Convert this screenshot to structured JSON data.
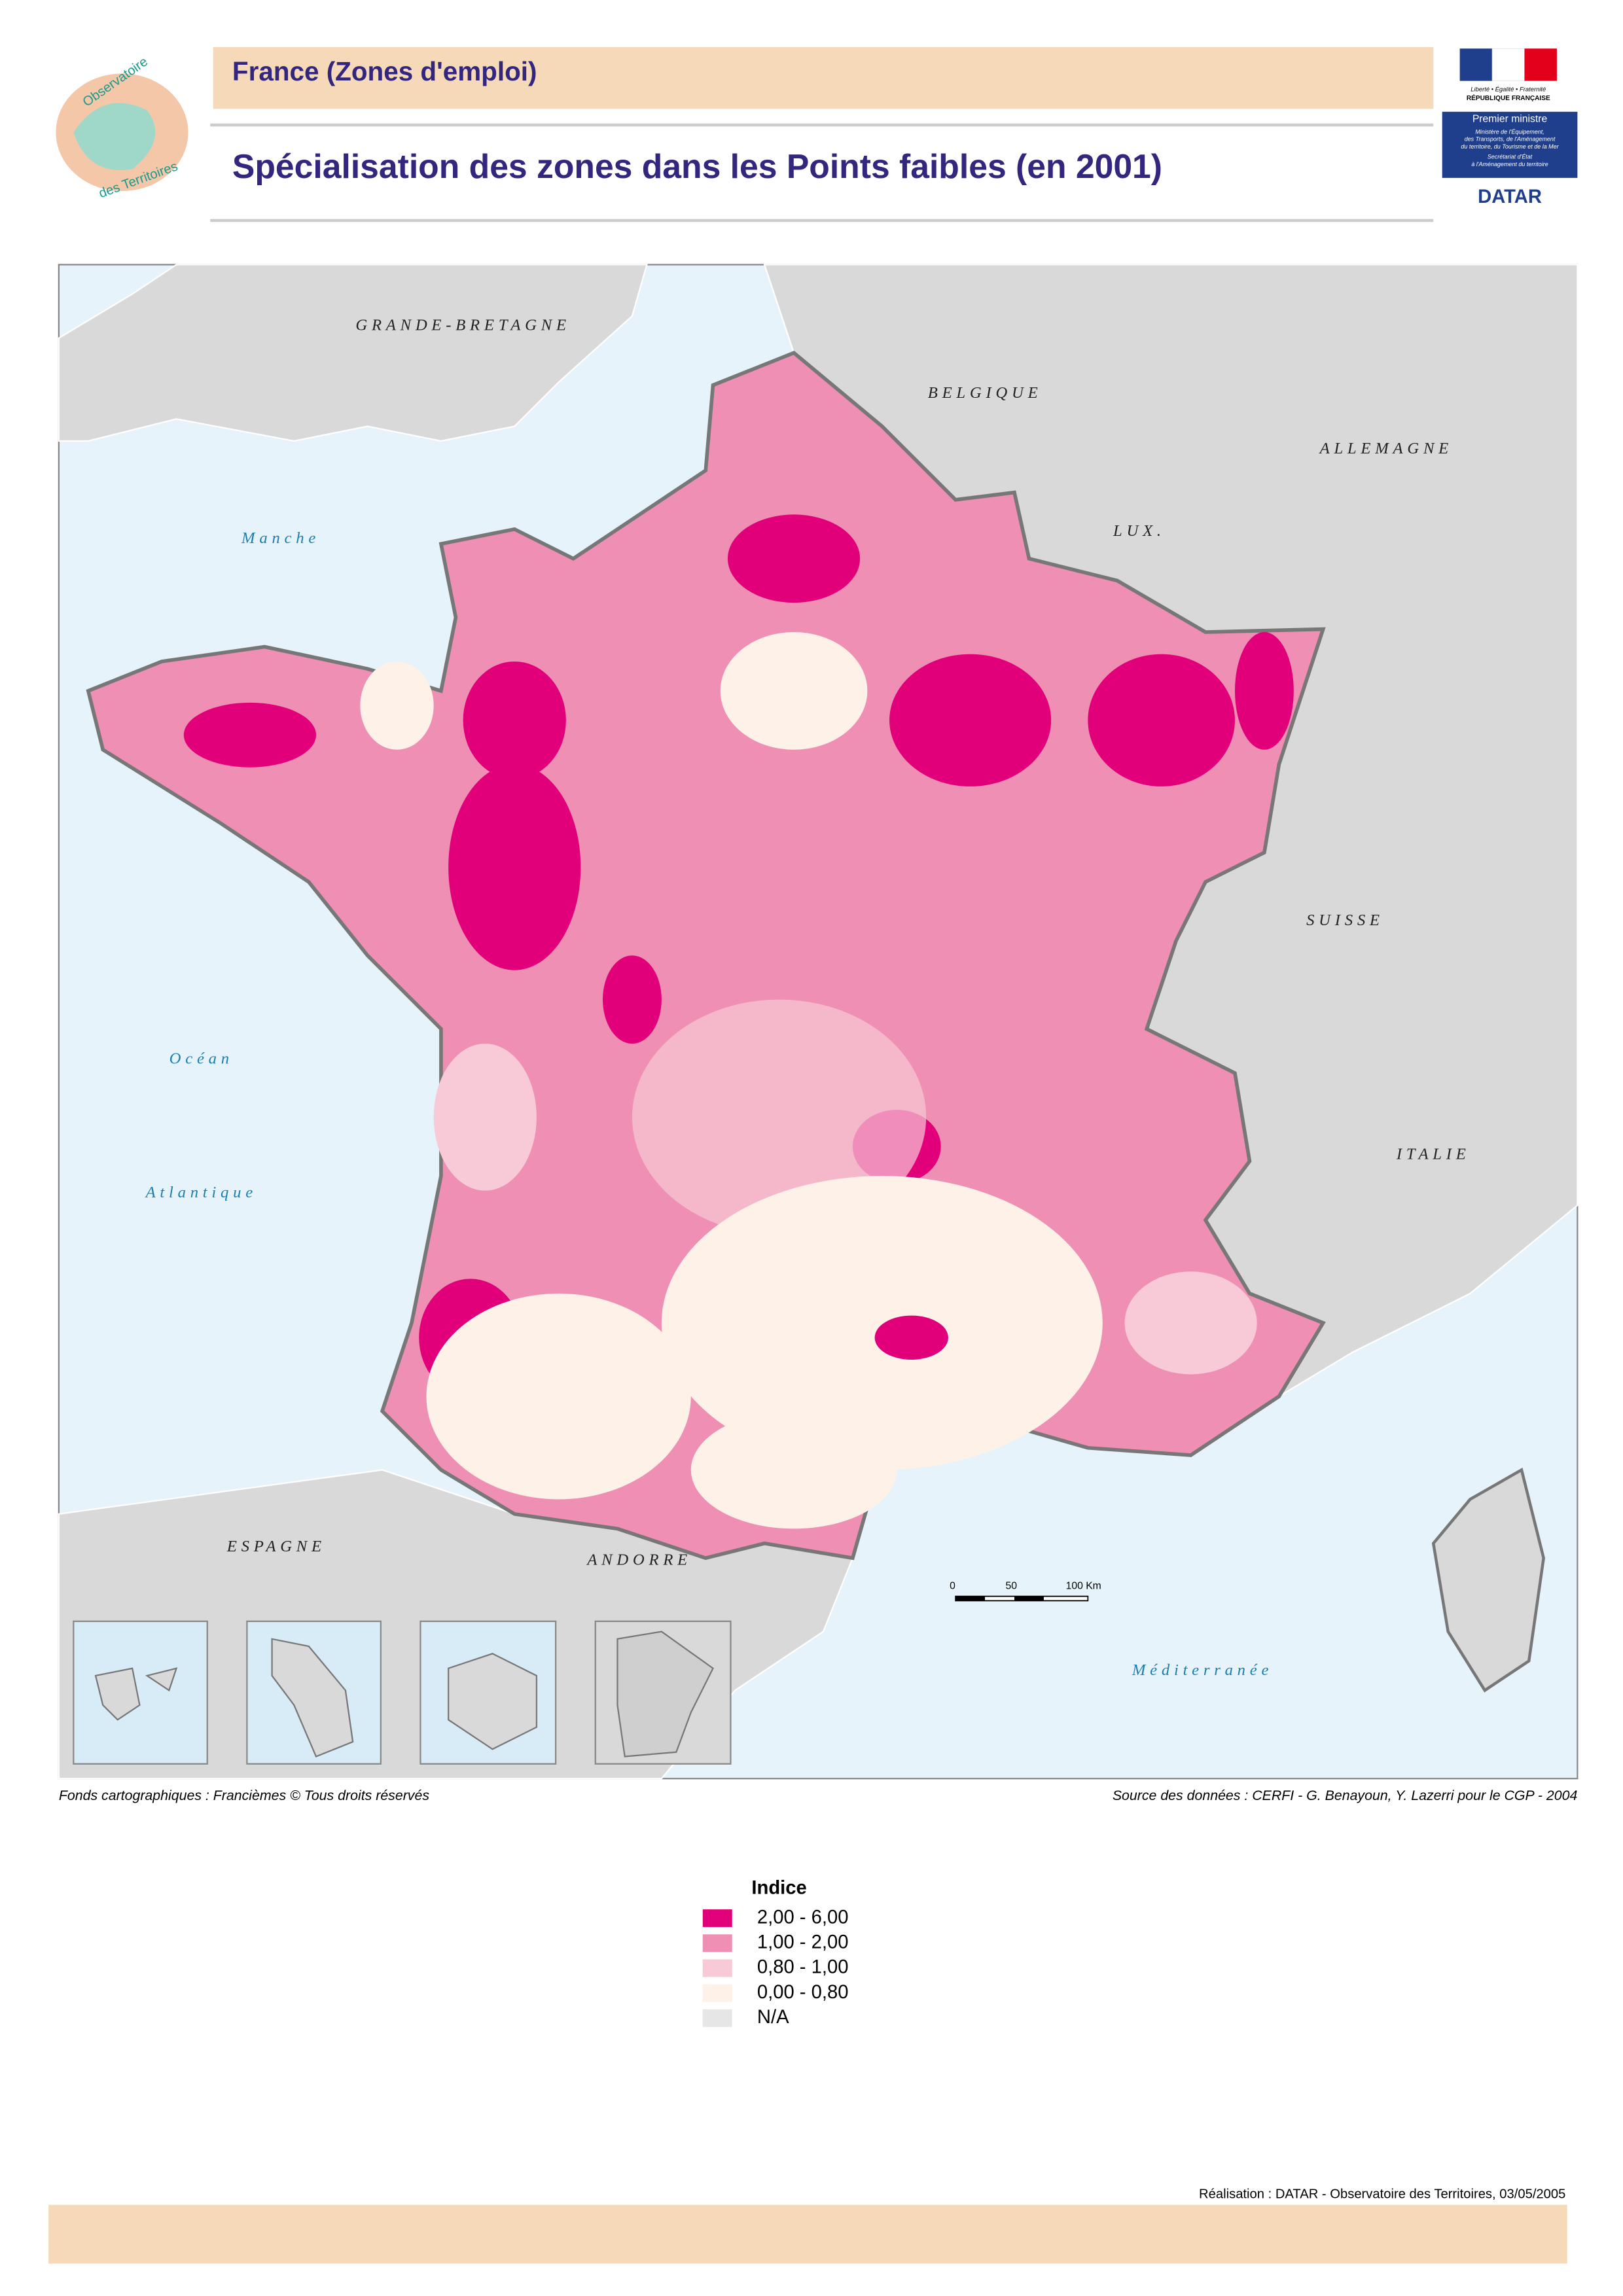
{
  "header": {
    "title": "France (Zones d'emploi)",
    "subtitle": "Spécialisation des zones dans les Points faibles (en 2001)"
  },
  "logos": {
    "left": [
      "Observatoire",
      "des Territoires"
    ],
    "right": [
      "Liberté • Égalité • Fraternité",
      "RÉPUBLIQUE FRANÇAISE",
      "Premier ministre",
      "Ministère de l'Équipement,",
      "des Transports, de l'Aménagement",
      "du territoire, du Tourisme et de la Mer",
      "Secrétariat d'État",
      "à l'Aménagement du territoire",
      "DATAR"
    ]
  },
  "map": {
    "countries": [
      "GRANDE-BRETAGNE",
      "BELGIQUE",
      "ALLEMAGNE",
      "LUX.",
      "SUISSE",
      "ITALIE",
      "ESPAGNE",
      "ANDORRE"
    ],
    "seas": [
      "Manche",
      "Océan",
      "Atlantique",
      "Méditerranée"
    ],
    "scale": [
      "0",
      "50",
      "100 Km"
    ]
  },
  "credits": {
    "left": "Fonds cartographiques : Francièmes © Tous droits réservés",
    "right": "Source des données : CERFI - G. Benayoun, Y. Lazerri pour le CGP - 2004"
  },
  "legend": {
    "title": "Indice",
    "items": [
      {
        "label": "2,00 - 6,00",
        "color": "#e2007a"
      },
      {
        "label": "1,00 - 2,00",
        "color": "#ee8fb3"
      },
      {
        "label": "0,80 - 1,00",
        "color": "#f8c9d6"
      },
      {
        "label": "0,00 - 0,80",
        "color": "#fdf1e8"
      },
      {
        "label": "N/A",
        "color": "#e6e6e6"
      }
    ]
  },
  "footer": "Réalisation : DATAR - Observatoire des Territoires, 03/05/2005"
}
